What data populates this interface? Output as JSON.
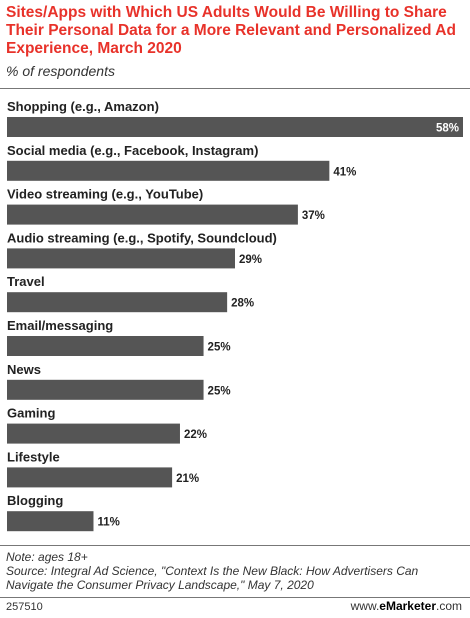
{
  "title": "Sites/Apps with Which US Adults Would Be Willing to Share Their Personal Data for a More Relevant and Personalized Ad Experience, March 2020",
  "subtitle": "% of respondents",
  "note": "Note: ages 18+",
  "source": "Source: Integral Ad Science, \"Context Is the New Black: How Advertisers Can Navigate the Consumer Privacy Landscape,\" May 7, 2020",
  "chart_id": "257510",
  "brand": {
    "prefix": "www.",
    "name": "eMarketer",
    "suffix": ".com"
  },
  "colors": {
    "bar": "#555555",
    "title": "#e8322a"
  },
  "chart_data": {
    "type": "bar",
    "orientation": "horizontal",
    "title": "Sites/Apps with Which US Adults Would Be Willing to Share Their Personal Data for a More Relevant and Personalized Ad Experience, March 2020",
    "subtitle": "% of respondents",
    "categories": [
      "Shopping (e.g., Amazon)",
      "Social media (e.g., Facebook, Instagram)",
      "Video streaming (e.g., YouTube)",
      "Audio streaming (e.g., Spotify, Soundcloud)",
      "Travel",
      "Email/messaging",
      "News",
      "Gaming",
      "Lifestyle",
      "Blogging"
    ],
    "values": [
      58,
      41,
      37,
      29,
      28,
      25,
      25,
      22,
      21,
      11
    ],
    "value_labels": [
      "58%",
      "41%",
      "37%",
      "29%",
      "28%",
      "25%",
      "25%",
      "22%",
      "21%",
      "11%"
    ],
    "xlim": [
      0,
      58
    ],
    "grid": false,
    "legend": "none"
  }
}
